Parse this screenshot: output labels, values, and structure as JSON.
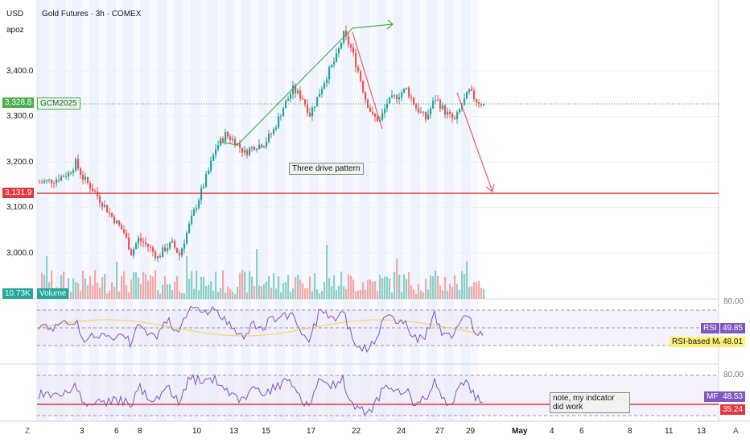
{
  "header": {
    "currency": "USD",
    "user": "apoz",
    "symbol_title": "Gold Futures · 3h · COMEX"
  },
  "price_axis": {
    "ticks": [
      "3,400.0",
      "3,300.0",
      "3,200.0",
      "3,100.0",
      "3,000.0"
    ],
    "current_price": "3,328.8",
    "ticker": "GCM2025",
    "level_price": "3,131.9",
    "level_value": 3131.9
  },
  "volume": {
    "value": "10.73K",
    "label": "Volume"
  },
  "rsi": {
    "top_level": "80.00",
    "label": "RSI",
    "value": "49.85",
    "ma_label": "RSI-based MA",
    "ma_value": "48.01"
  },
  "mfi": {
    "top_level": "80.00",
    "label": "MF",
    "value": "48.53",
    "line_value": "35.24"
  },
  "annotations": {
    "pattern": "Three drive pattern",
    "note": "note, my indcator did work"
  },
  "x_axis": {
    "ticks": [
      "3",
      "6",
      "8",
      "10",
      "13",
      "15",
      "17",
      "22",
      "24",
      "27",
      "29",
      "May",
      "4",
      "6",
      "8",
      "11",
      "13"
    ],
    "left_button": "Z",
    "right_button": "A"
  },
  "colors": {
    "up": "#26a69a",
    "down": "#ef5350",
    "level_line": "#e5363d",
    "rsi_line": "#7e57c2",
    "rsi_ma": "#f3d547",
    "trend": "#4caf50",
    "target_arrow": "#f05a66"
  },
  "chart_data": {
    "type": "candlestick",
    "symbol": "GCM2025",
    "interval": "3h",
    "x_ticks": [
      "3",
      "6",
      "8",
      "10",
      "13",
      "15",
      "17",
      "22",
      "24",
      "27",
      "29",
      "May",
      "4",
      "6",
      "8",
      "11",
      "13"
    ],
    "price_ticks": [
      3000,
      3100,
      3200,
      3300,
      3400
    ],
    "close_path": [
      [
        0,
        3155
      ],
      [
        6,
        3160
      ],
      [
        12,
        3175
      ],
      [
        15,
        3198
      ],
      [
        18,
        3165
      ],
      [
        22,
        3140
      ],
      [
        26,
        3110
      ],
      [
        30,
        3080
      ],
      [
        35,
        3045
      ],
      [
        38,
        3000
      ],
      [
        41,
        3030
      ],
      [
        45,
        3015
      ],
      [
        49,
        2990
      ],
      [
        52,
        3010
      ],
      [
        55,
        3020
      ],
      [
        58,
        2995
      ],
      [
        62,
        3060
      ],
      [
        66,
        3120
      ],
      [
        70,
        3180
      ],
      [
        73,
        3230
      ],
      [
        77,
        3260
      ],
      [
        81,
        3245
      ],
      [
        85,
        3220
      ],
      [
        89,
        3235
      ],
      [
        93,
        3240
      ],
      [
        97,
        3270
      ],
      [
        101,
        3320
      ],
      [
        105,
        3360
      ],
      [
        109,
        3340
      ],
      [
        112,
        3305
      ],
      [
        115,
        3340
      ],
      [
        119,
        3390
      ],
      [
        123,
        3430
      ],
      [
        126,
        3480
      ],
      [
        129,
        3450
      ],
      [
        132,
        3400
      ],
      [
        135,
        3340
      ],
      [
        138,
        3300
      ],
      [
        141,
        3290
      ],
      [
        144,
        3330
      ],
      [
        148,
        3345
      ],
      [
        152,
        3360
      ],
      [
        156,
        3320
      ],
      [
        160,
        3295
      ],
      [
        164,
        3340
      ],
      [
        168,
        3310
      ],
      [
        172,
        3290
      ],
      [
        175,
        3325
      ],
      [
        178,
        3355
      ],
      [
        181,
        3335
      ],
      [
        184,
        3325
      ]
    ],
    "level": 3131.9,
    "current": 3328.8,
    "volume_last": "10.73K",
    "rsi": {
      "value": 49.85,
      "ma": 48.01,
      "upper": 80
    },
    "mfi": {
      "value": 48.53,
      "line": 35.24,
      "upper": 80
    }
  }
}
